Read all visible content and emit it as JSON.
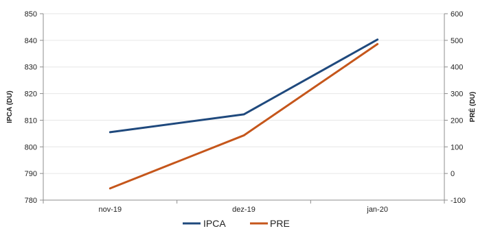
{
  "chart_data": {
    "type": "line",
    "categories": [
      "nov-19",
      "dez-19",
      "jan-20"
    ],
    "series": [
      {
        "name": "IPCA",
        "axis": "left",
        "color": "#1F497D",
        "values": [
          805.5,
          812.2,
          840.3
        ]
      },
      {
        "name": "PRE",
        "axis": "right",
        "color": "#C5561B",
        "values": [
          -56,
          143,
          486
        ]
      }
    ],
    "ylabel_left": "IPCA (DU)",
    "ylabel_right": "PRÉ (DU)",
    "ylim_left": [
      780,
      850
    ],
    "yticks_left": [
      780,
      790,
      800,
      810,
      820,
      830,
      840,
      850
    ],
    "ylim_right": [
      -100,
      600
    ],
    "yticks_right": [
      -100,
      0,
      100,
      200,
      300,
      400,
      500,
      600
    ],
    "grid": true,
    "legend_position": "bottom"
  }
}
